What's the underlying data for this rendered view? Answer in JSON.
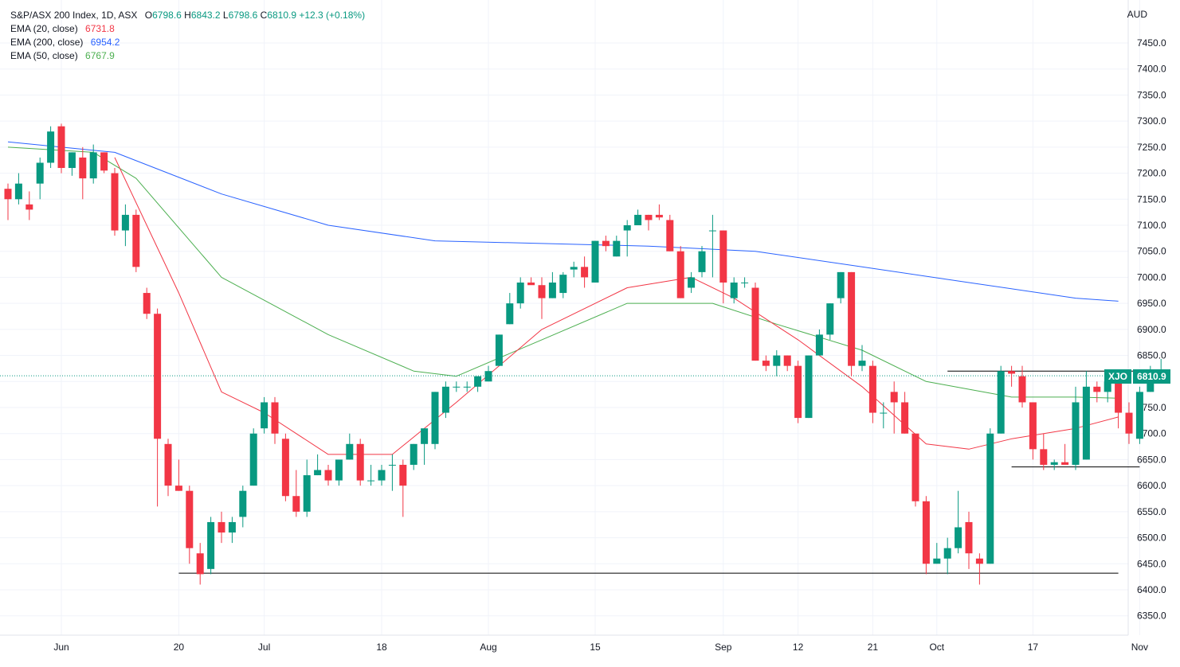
{
  "legend": {
    "title": "S&P/ASX 200 Index, 1D, ASX",
    "ohlc": {
      "o_label": "O",
      "o_value": "6798.6",
      "h_label": "H",
      "h_value": "6843.2",
      "l_label": "L",
      "l_value": "6798.6",
      "c_label": "C",
      "c_value": "6810.9",
      "change": "+12.3 (+0.18%)"
    },
    "indicators": [
      {
        "label": "EMA (20, close)",
        "value": "6731.8",
        "color": "#f23645"
      },
      {
        "label": "EMA (200, close)",
        "value": "6954.2",
        "color": "#2962ff"
      },
      {
        "label": "EMA (50, close)",
        "value": "6767.9",
        "color": "#4caf50"
      }
    ]
  },
  "currency": "AUD",
  "price_tag": {
    "symbol": "XJO",
    "value": "6810.9"
  },
  "colors": {
    "up": "#089981",
    "down": "#f23645",
    "ema20": "#f23645",
    "ema200": "#2962ff",
    "ema50": "#4caf50",
    "grid": "#f0f3fa"
  },
  "chart_data": {
    "type": "candlestick",
    "y_axis": {
      "min": 6350,
      "max": 7500,
      "ticks": [
        6350,
        6400,
        6450,
        6500,
        6550,
        6600,
        6650,
        6700,
        6750,
        6800,
        6850,
        6900,
        6950,
        7000,
        7050,
        7100,
        7150,
        7200,
        7250,
        7300,
        7350,
        7400,
        7450
      ]
    },
    "x_axis": {
      "tick_labels": [
        {
          "label": "Jun",
          "index": 5
        },
        {
          "label": "20",
          "index": 16
        },
        {
          "label": "Jul",
          "index": 24
        },
        {
          "label": "18",
          "index": 35
        },
        {
          "label": "Aug",
          "index": 45
        },
        {
          "label": "15",
          "index": 55
        },
        {
          "label": "Sep",
          "index": 67
        },
        {
          "label": "12",
          "index": 74
        },
        {
          "label": "21",
          "index": 81
        },
        {
          "label": "Oct",
          "index": 87
        },
        {
          "label": "17",
          "index": 96
        },
        {
          "label": "Nov",
          "index": 106
        }
      ]
    },
    "candles": [
      [
        7170,
        7180,
        7110,
        7150
      ],
      [
        7150,
        7200,
        7140,
        7180
      ],
      [
        7140,
        7165,
        7110,
        7130
      ],
      [
        7180,
        7230,
        7150,
        7220
      ],
      [
        7220,
        7290,
        7210,
        7280
      ],
      [
        7290,
        7295,
        7200,
        7210
      ],
      [
        7210,
        7240,
        7195,
        7240
      ],
      [
        7230,
        7250,
        7150,
        7190
      ],
      [
        7190,
        7255,
        7180,
        7240
      ],
      [
        7240,
        7240,
        7200,
        7205
      ],
      [
        7200,
        7210,
        7080,
        7090
      ],
      [
        7090,
        7140,
        7060,
        7120
      ],
      [
        7120,
        7130,
        7010,
        7020
      ],
      [
        6970,
        6980,
        6920,
        6930
      ],
      [
        6930,
        6940,
        6560,
        6690
      ],
      [
        6680,
        6690,
        6580,
        6600
      ],
      [
        6600,
        6650,
        6590,
        6590
      ],
      [
        6590,
        6600,
        6450,
        6480
      ],
      [
        6470,
        6490,
        6410,
        6430
      ],
      [
        6440,
        6540,
        6430,
        6530
      ],
      [
        6530,
        6550,
        6490,
        6510
      ],
      [
        6510,
        6540,
        6490,
        6530
      ],
      [
        6540,
        6600,
        6520,
        6590
      ],
      [
        6600,
        6710,
        6600,
        6700
      ],
      [
        6710,
        6770,
        6700,
        6760
      ],
      [
        6760,
        6770,
        6680,
        6700
      ],
      [
        6690,
        6700,
        6570,
        6580
      ],
      [
        6580,
        6630,
        6540,
        6550
      ],
      [
        6550,
        6650,
        6540,
        6620
      ],
      [
        6620,
        6660,
        6620,
        6630
      ],
      [
        6630,
        6640,
        6600,
        6610
      ],
      [
        6610,
        6640,
        6600,
        6650
      ],
      [
        6650,
        6700,
        6650,
        6680
      ],
      [
        6680,
        6690,
        6600,
        6610
      ],
      [
        6610,
        6640,
        6600,
        6610
      ],
      [
        6610,
        6640,
        6600,
        6630
      ],
      [
        6640,
        6660,
        6590,
        6640
      ],
      [
        6640,
        6650,
        6540,
        6600
      ],
      [
        6640,
        6680,
        6630,
        6680
      ],
      [
        6680,
        6710,
        6640,
        6710
      ],
      [
        6680,
        6780,
        6670,
        6780
      ],
      [
        6740,
        6800,
        6730,
        6790
      ],
      [
        6790,
        6800,
        6780,
        6790
      ],
      [
        6790,
        6800,
        6780,
        6790
      ],
      [
        6790,
        6810,
        6780,
        6810
      ],
      [
        6800,
        6830,
        6800,
        6820
      ],
      [
        6830,
        6890,
        6830,
        6890
      ],
      [
        6910,
        6970,
        6910,
        6950
      ],
      [
        6950,
        7000,
        6940,
        6990
      ],
      [
        6990,
        7000,
        6990,
        6985
      ],
      [
        6985,
        7000,
        6920,
        6960
      ],
      [
        6960,
        7010,
        6960,
        6990
      ],
      [
        6970,
        7010,
        6960,
        7005
      ],
      [
        7015,
        7030,
        7000,
        7020
      ],
      [
        7020,
        7040,
        6980,
        7000
      ],
      [
        6990,
        7070,
        6990,
        7070
      ],
      [
        7070,
        7080,
        7050,
        7060
      ],
      [
        7040,
        7080,
        7040,
        7070
      ],
      [
        7090,
        7110,
        7040,
        7100
      ],
      [
        7100,
        7130,
        7100,
        7120
      ],
      [
        7120,
        7120,
        7090,
        7110
      ],
      [
        7120,
        7140,
        7110,
        7115
      ],
      [
        7110,
        7120,
        7050,
        7050
      ],
      [
        7050,
        7060,
        6960,
        6960
      ],
      [
        6980,
        7010,
        6970,
        7000
      ],
      [
        7010,
        7060,
        7000,
        7050
      ],
      [
        7090,
        7120,
        7000,
        7090
      ],
      [
        7090,
        7090,
        6950,
        6990
      ],
      [
        6960,
        7000,
        6950,
        6990
      ],
      [
        6990,
        7000,
        6980,
        6990
      ],
      [
        6980,
        6990,
        6840,
        6840
      ],
      [
        6840,
        6850,
        6820,
        6830
      ],
      [
        6830,
        6860,
        6810,
        6850
      ],
      [
        6850,
        6850,
        6820,
        6830
      ],
      [
        6830,
        6840,
        6720,
        6730
      ],
      [
        6730,
        6850,
        6730,
        6850
      ],
      [
        6850,
        6900,
        6850,
        6890
      ],
      [
        6890,
        6950,
        6880,
        6950
      ],
      [
        6960,
        7010,
        6950,
        7010
      ],
      [
        7010,
        7010,
        6810,
        6830
      ],
      [
        6830,
        6870,
        6820,
        6840
      ],
      [
        6830,
        6840,
        6720,
        6740
      ],
      [
        6740,
        6760,
        6710,
        6740
      ],
      [
        6780,
        6800,
        6700,
        6760
      ],
      [
        6760,
        6780,
        6700,
        6700
      ],
      [
        6700,
        6700,
        6560,
        6570
      ],
      [
        6570,
        6580,
        6430,
        6450
      ],
      [
        6450,
        6490,
        6450,
        6460
      ],
      [
        6460,
        6500,
        6430,
        6480
      ],
      [
        6480,
        6590,
        6470,
        6520
      ],
      [
        6530,
        6550,
        6440,
        6470
      ],
      [
        6460,
        6470,
        6410,
        6450
      ],
      [
        6450,
        6710,
        6450,
        6700
      ],
      [
        6700,
        6830,
        6700,
        6820
      ],
      [
        6820,
        6830,
        6790,
        6815
      ],
      [
        6810,
        6830,
        6750,
        6760
      ],
      [
        6760,
        6760,
        6650,
        6670
      ],
      [
        6670,
        6700,
        6630,
        6640
      ],
      [
        6640,
        6650,
        6630,
        6645
      ],
      [
        6645,
        6680,
        6640,
        6640
      ],
      [
        6640,
        6790,
        6630,
        6760
      ],
      [
        6650,
        6820,
        6650,
        6790
      ],
      [
        6790,
        6800,
        6760,
        6780
      ],
      [
        6780,
        6820,
        6760,
        6800
      ],
      [
        6800,
        6820,
        6710,
        6740
      ],
      [
        6740,
        6760,
        6680,
        6700
      ],
      [
        6690,
        6790,
        6680,
        6780
      ],
      [
        6780,
        6830,
        6780,
        6800
      ],
      [
        6798.6,
        6843.2,
        6798.6,
        6810.9
      ]
    ],
    "ema200_approx": [
      [
        0,
        7260
      ],
      [
        10,
        7240
      ],
      [
        20,
        7160
      ],
      [
        30,
        7100
      ],
      [
        40,
        7070
      ],
      [
        50,
        7065
      ],
      [
        60,
        7060
      ],
      [
        70,
        7050
      ],
      [
        80,
        7020
      ],
      [
        90,
        6990
      ],
      [
        100,
        6960
      ],
      [
        104,
        6954.2
      ]
    ],
    "ema50_approx": [
      [
        0,
        7250
      ],
      [
        8,
        7240
      ],
      [
        12,
        7190
      ],
      [
        20,
        7000
      ],
      [
        30,
        6890
      ],
      [
        38,
        6820
      ],
      [
        42,
        6810
      ],
      [
        50,
        6880
      ],
      [
        58,
        6950
      ],
      [
        66,
        6950
      ],
      [
        72,
        6910
      ],
      [
        80,
        6860
      ],
      [
        86,
        6800
      ],
      [
        94,
        6770
      ],
      [
        100,
        6770
      ],
      [
        104,
        6767.9
      ]
    ],
    "ema20_approx": [
      [
        10,
        7230
      ],
      [
        16,
        6970
      ],
      [
        20,
        6780
      ],
      [
        24,
        6740
      ],
      [
        30,
        6660
      ],
      [
        36,
        6660
      ],
      [
        42,
        6760
      ],
      [
        50,
        6900
      ],
      [
        58,
        6980
      ],
      [
        64,
        7000
      ],
      [
        68,
        6960
      ],
      [
        74,
        6880
      ],
      [
        80,
        6790
      ],
      [
        86,
        6680
      ],
      [
        90,
        6670
      ],
      [
        94,
        6690
      ],
      [
        100,
        6710
      ],
      [
        104,
        6731.8
      ]
    ],
    "lines": [
      {
        "y": 6810.9,
        "style": "dotted",
        "color": "#089981"
      },
      {
        "y": 6432,
        "from_index": 16,
        "to_index": 104,
        "style": "solid",
        "color": "#000000"
      },
      {
        "y": 6820,
        "from_index": 88,
        "to_index": 106,
        "style": "solid",
        "color": "#000000"
      },
      {
        "y": 6636,
        "from_index": 94,
        "to_index": 106,
        "style": "solid",
        "color": "#000000"
      }
    ]
  }
}
